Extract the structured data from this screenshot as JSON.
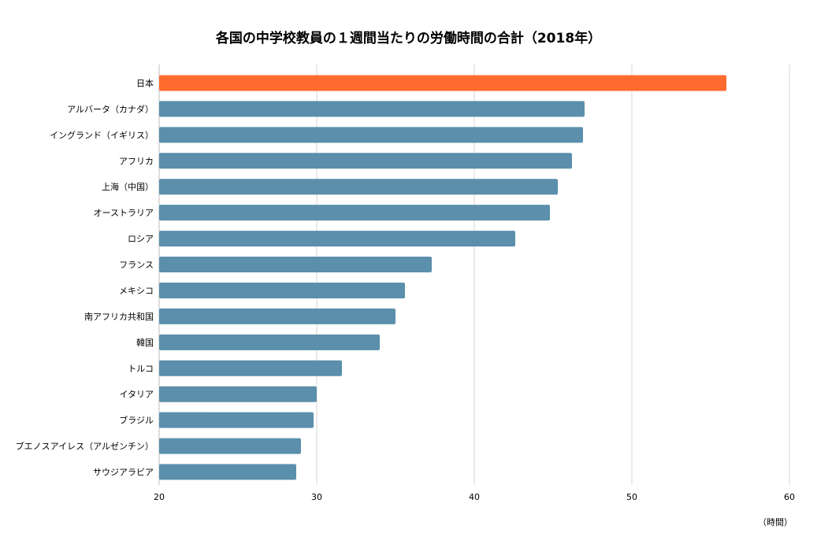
{
  "chart_data": {
    "type": "bar",
    "orientation": "horizontal",
    "title": "各国の中学校教員の１週間当たりの労働時間の合計（2018年）",
    "unit_label": "（時間）",
    "categories": [
      "日本",
      "アルバータ（カナダ）",
      "イングランド（イギリス）",
      "アフリカ",
      "上海（中国）",
      "オーストラリア",
      "ロシア",
      "フランス",
      "メキシコ",
      "南アフリカ共和国",
      "韓国",
      "トルコ",
      "イタリア",
      "ブラジル",
      "ブエノスアイレス（アルゼンチン）",
      "サウジアラビア"
    ],
    "values": [
      56.0,
      47.0,
      46.9,
      46.2,
      45.3,
      44.8,
      42.6,
      37.3,
      35.6,
      35.0,
      34.0,
      31.6,
      30.0,
      29.8,
      29.0,
      28.7
    ],
    "xlim": [
      20,
      60
    ],
    "xticks": [
      20,
      30,
      40,
      50,
      60
    ],
    "grid": true,
    "bar_color": "#5b8fab",
    "highlight_color": "#ff6b2e",
    "highlight_index": 0
  }
}
